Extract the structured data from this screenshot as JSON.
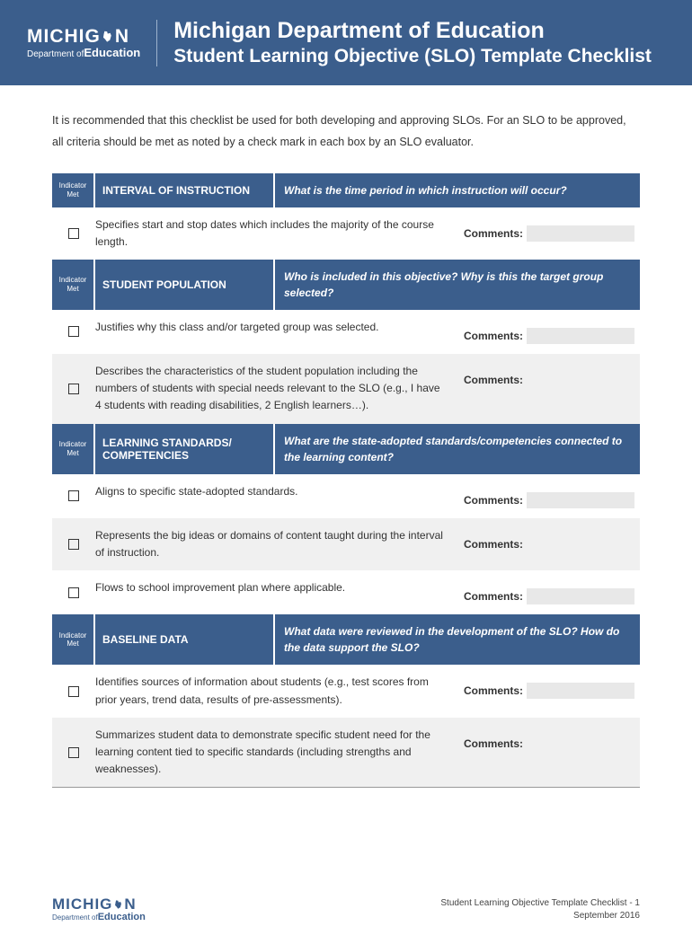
{
  "header": {
    "logo_main_pre": "MICHIG",
    "logo_main_post": "N",
    "logo_sub_pre": "Department",
    "logo_sub_of": "of",
    "logo_sub_main": "Education",
    "title": "Michigan Department of Education",
    "subtitle": "Student Learning Objective (SLO) Template Checklist"
  },
  "intro": "It is recommended that this checklist be used for both developing and approving SLOs. For an SLO to be approved, all criteria should be met as noted by a check mark in each box by an SLO evaluator.",
  "indicator_label": "Indicator Met",
  "comments_label": "Comments:",
  "sections": [
    {
      "title": "INTERVAL OF INSTRUCTION",
      "question": "What is the time period in which instruction will occur?",
      "rows": [
        {
          "desc": "Specifies start and stop dates which includes the majority of the course length.",
          "alt": false
        }
      ]
    },
    {
      "title": "STUDENT POPULATION",
      "question": "Who is included in this objective? Why is this the target group selected?",
      "rows": [
        {
          "desc": "Justifies why this class and/or targeted group was selected.",
          "alt": false
        },
        {
          "desc": "Describes the characteristics of the student population including the numbers of students with special needs relevant to the SLO (e.g., I have 4 students with reading disabilities, 2 English learners…).",
          "alt": true
        }
      ]
    },
    {
      "title": "LEARNING STANDARDS/ COMPETENCIES",
      "question": "What are the state-adopted standards/competencies connected to the learning content?",
      "rows": [
        {
          "desc": "Aligns to specific state-adopted standards.",
          "alt": false
        },
        {
          "desc": "Represents the big ideas or domains of content taught during the interval of instruction.",
          "alt": true
        },
        {
          "desc": "Flows to school improvement plan where applicable.",
          "alt": false
        }
      ]
    },
    {
      "title": "BASELINE DATA",
      "question": "What data were reviewed in the development of the SLO? How do the data support the SLO?",
      "rows": [
        {
          "desc": "Identifies sources of information about students (e.g., test scores from prior years, trend data, results of pre-assessments).",
          "alt": false
        },
        {
          "desc": "Summarizes student data to demonstrate specific student need for the learning content tied to specific standards (including strengths and weaknesses).",
          "alt": true
        }
      ]
    }
  ],
  "footer": {
    "doc_title": "Student Learning Objective Template Checklist - 1",
    "date": "September 2016"
  },
  "colors": {
    "primary": "#3b5e8c",
    "alt_row": "#f0f0f0",
    "comment_box": "#e8e8e8"
  }
}
